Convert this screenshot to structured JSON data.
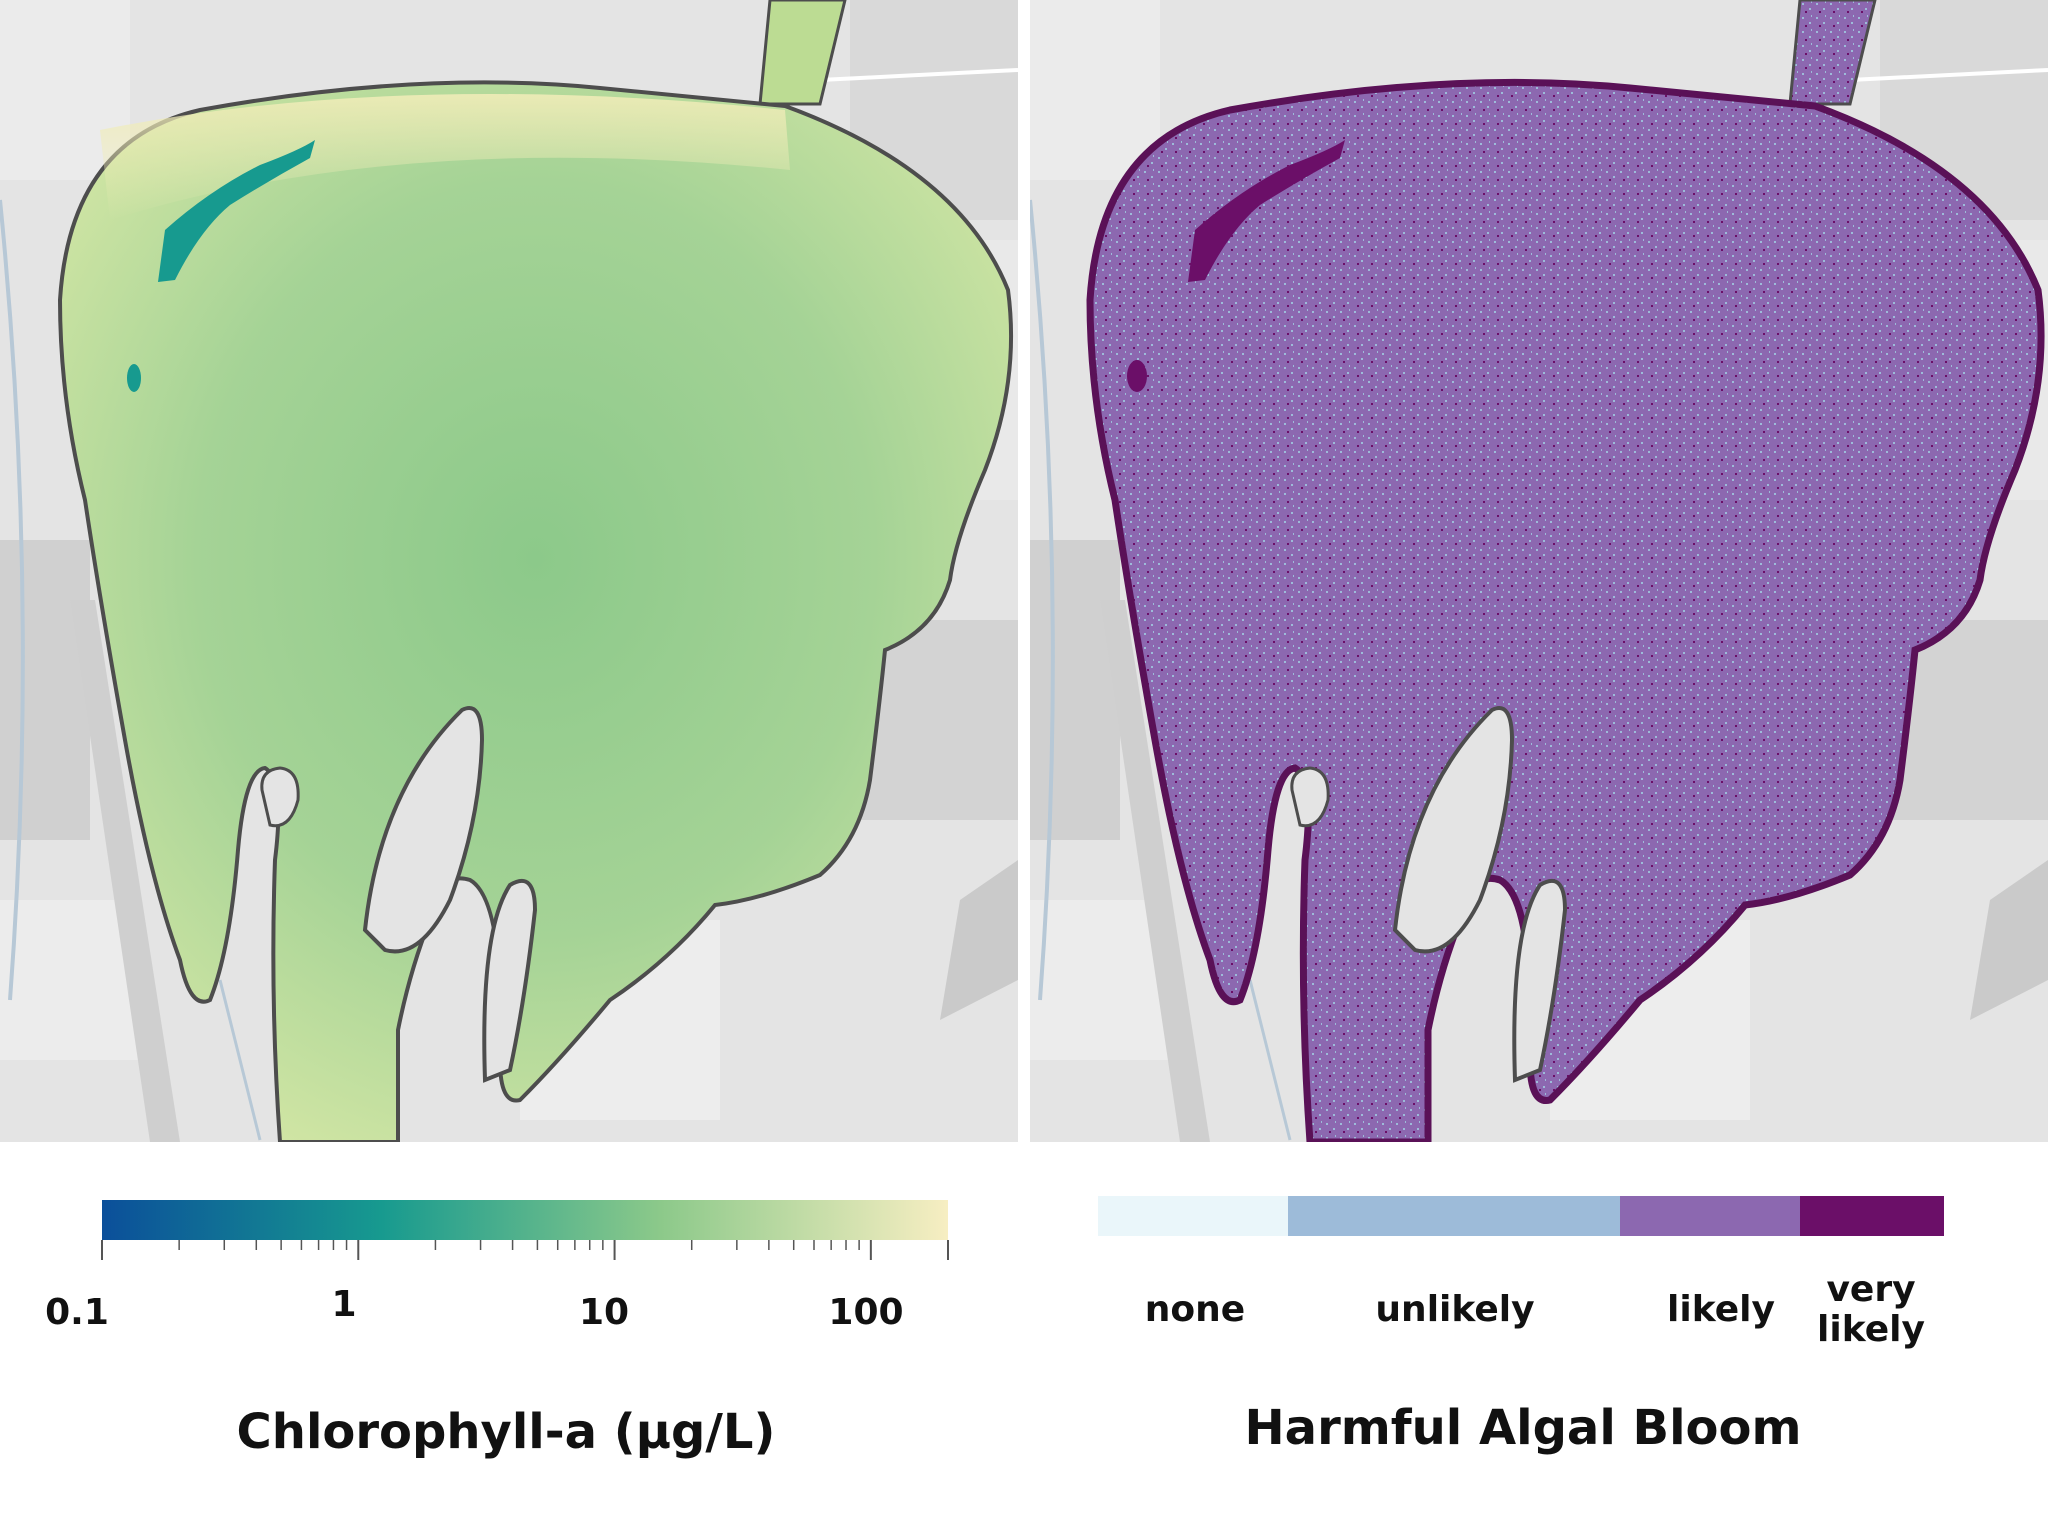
{
  "left_map": {
    "legend": {
      "title": "Chlorophyll-a (μg/L)",
      "scale": "log",
      "range": [
        0.1,
        200
      ],
      "colors": [
        "#0b4f9a",
        "#179a8f",
        "#8cc98a",
        "#f7eec2"
      ],
      "tick_labels": [
        "0.1",
        "1",
        "10",
        "100"
      ]
    }
  },
  "right_map": {
    "legend": {
      "title": "Harmful Algal Bloom",
      "categories": [
        {
          "label": "none",
          "color": "#eaf6fa"
        },
        {
          "label": "unlikely",
          "color": "#9dbbd9"
        },
        {
          "label": "likely",
          "color": "#8c68b0"
        },
        {
          "label": "very likely",
          "color": "#6b0f68"
        }
      ]
    }
  },
  "basemap_colors": {
    "background": "#e4e4e4",
    "land_block": "#d5d5d5",
    "lake_outline": "#4d4d4d",
    "stream": "#b7c8d6"
  }
}
